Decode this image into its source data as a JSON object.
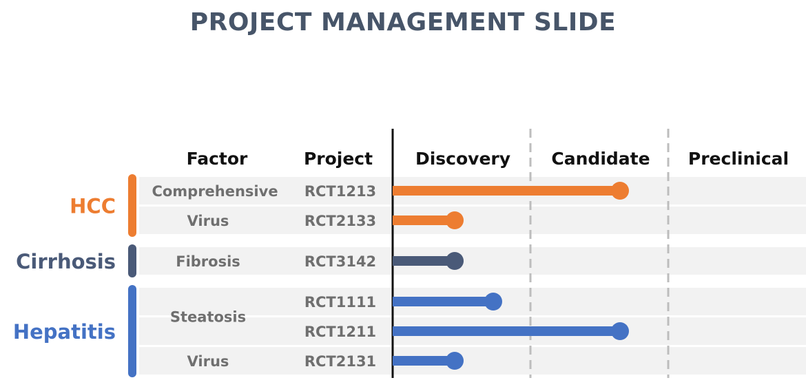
{
  "title": "PROJECT MANAGEMENT SLIDE",
  "chart_data": {
    "type": "bar",
    "headers": {
      "factor": "Factor",
      "project": "Project"
    },
    "stages": [
      "Discovery",
      "Candidate",
      "Preclinical"
    ],
    "colors": {
      "HCC": "#ED7D31",
      "Cirrhosis": "#4A5A78",
      "Hepatitis": "#4472C4",
      "row_bg": "#F2F2F2",
      "text": "#6f6f6f"
    },
    "groups": [
      {
        "name": "HCC",
        "color": "#ED7D31",
        "factors": [
          {
            "name": "Comprehensive",
            "projects": [
              {
                "id": "RCT1213",
                "progress": 1.65
              }
            ]
          },
          {
            "name": "Virus",
            "projects": [
              {
                "id": "RCT2133",
                "progress": 0.45
              }
            ]
          }
        ]
      },
      {
        "name": "Cirrhosis",
        "color": "#4A5A78",
        "factors": [
          {
            "name": "Fibrosis",
            "projects": [
              {
                "id": "RCT3142",
                "progress": 0.45
              }
            ]
          }
        ]
      },
      {
        "name": "Hepatitis",
        "color": "#4472C4",
        "factors": [
          {
            "name": "Steatosis",
            "projects": [
              {
                "id": "RCT1111",
                "progress": 0.73
              },
              {
                "id": "RCT1211",
                "progress": 1.65
              }
            ]
          },
          {
            "name": "Virus",
            "projects": [
              {
                "id": "RCT2131",
                "progress": 0.45
              }
            ]
          }
        ]
      }
    ],
    "xlim": [
      0,
      3
    ]
  }
}
